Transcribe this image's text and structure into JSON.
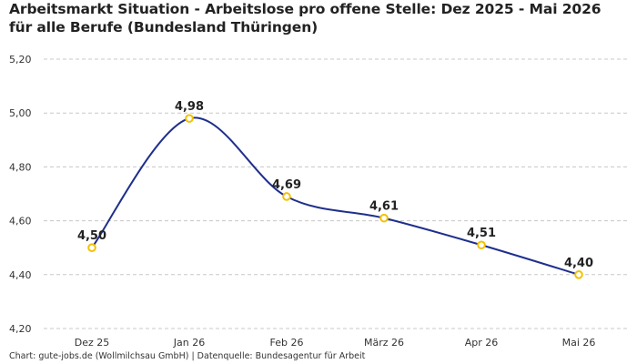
{
  "chart_data": {
    "type": "line",
    "title": "Arbeitsmarkt Situation - Arbeitslose pro offene Stelle: Dez 2025 - Mai 2026 für alle Berufe (Bundesland Thüringen)",
    "categories": [
      "Dez 25",
      "Jan 26",
      "Feb 26",
      "März 26",
      "Apr 26",
      "Mai 26"
    ],
    "values": [
      4.5,
      4.98,
      4.69,
      4.61,
      4.51,
      4.4
    ],
    "data_labels": [
      "4,50",
      "4,98",
      "4,69",
      "4,61",
      "4,51",
      "4,40"
    ],
    "y_ticks": [
      4.2,
      4.4,
      4.6,
      4.8,
      5.0,
      5.2
    ],
    "y_tick_labels": [
      "4,20",
      "4,40",
      "4,60",
      "4,80",
      "5,00",
      "5,20"
    ],
    "ylim": [
      4.2,
      5.2
    ],
    "grid": true,
    "line_color": "#1f2f8c",
    "marker_color": "#f2c200"
  },
  "footer": {
    "source": "Chart: gute-jobs.de (Wollmilchsau GmbH) | Datenquelle: Bundesagentur für Arbeit"
  }
}
